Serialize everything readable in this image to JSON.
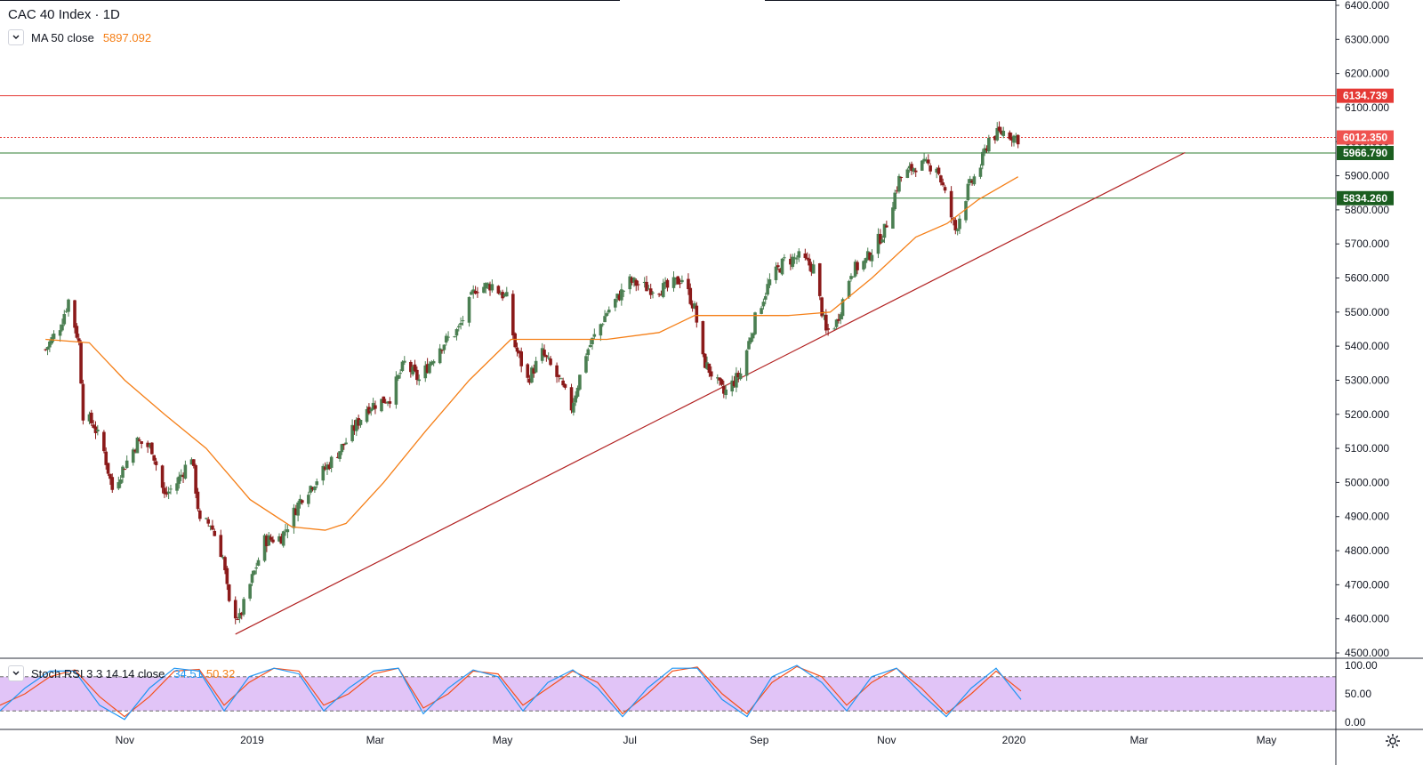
{
  "title": "CAC 40 Index · 1D",
  "ma_legend": {
    "label": "MA 50 close",
    "value": "5897.092"
  },
  "stoch_legend": {
    "label": "Stoch RSI 3 3 14 14 close",
    "k": "34.51",
    "d": "50.32"
  },
  "colors": {
    "up": "#4b7f52",
    "down": "#8b1a1a",
    "ma": "#f57f17",
    "trend": "#b22222",
    "resistance": "#e53935",
    "support": "#2e7d32",
    "stoch_k": "#2196f3",
    "stoch_d": "#f4511e",
    "stoch_band": "#e1c4f7"
  },
  "chart_data": {
    "type": "candlestick",
    "y_ticks": [
      "6400.000",
      "6300.000",
      "6200.000",
      "6100.000",
      "6000.000",
      "5900.000",
      "5800.000",
      "5700.000",
      "5600.000",
      "5500.000",
      "5400.000",
      "5300.000",
      "5200.000",
      "5100.000",
      "5000.000",
      "4900.000",
      "4800.000",
      "4700.000",
      "4600.000",
      "4500.000"
    ],
    "x_ticks": [
      "Nov",
      "2019",
      "Mar",
      "May",
      "Jul",
      "Sep",
      "Nov",
      "2020",
      "Mar",
      "May"
    ],
    "close_path": [
      [
        "2018-09-24",
        5390
      ],
      [
        "2018-10-01",
        5460
      ],
      [
        "2018-10-05",
        5535
      ],
      [
        "2018-10-10",
        5410
      ],
      [
        "2018-10-12",
        5200
      ],
      [
        "2018-10-17",
        5170
      ],
      [
        "2018-10-22",
        5090
      ],
      [
        "2018-10-26",
        4980
      ],
      [
        "2018-10-31",
        5040
      ],
      [
        "2018-11-07",
        5120
      ],
      [
        "2018-11-14",
        5100
      ],
      [
        "2018-11-20",
        4960
      ],
      [
        "2018-11-26",
        5000
      ],
      [
        "2018-12-03",
        5080
      ],
      [
        "2018-12-07",
        4880
      ],
      [
        "2018-12-12",
        4880
      ],
      [
        "2018-12-18",
        4780
      ],
      [
        "2018-12-21",
        4640
      ],
      [
        "2018-12-26",
        4600
      ],
      [
        "2018-12-31",
        4700
      ],
      [
        "2019-01-07",
        4830
      ],
      [
        "2019-01-15",
        4840
      ],
      [
        "2019-01-25",
        4960
      ],
      [
        "2019-02-05",
        5040
      ],
      [
        "2019-02-15",
        5120
      ],
      [
        "2019-02-25",
        5220
      ],
      [
        "2019-03-08",
        5250
      ],
      [
        "2019-03-15",
        5350
      ],
      [
        "2019-03-22",
        5300
      ],
      [
        "2019-04-01",
        5400
      ],
      [
        "2019-04-10",
        5450
      ],
      [
        "2019-04-18",
        5570
      ],
      [
        "2019-04-26",
        5580
      ],
      [
        "2019-05-03",
        5540
      ],
      [
        "2019-05-07",
        5400
      ],
      [
        "2019-05-13",
        5300
      ],
      [
        "2019-05-20",
        5380
      ],
      [
        "2019-05-28",
        5300
      ],
      [
        "2019-06-03",
        5220
      ],
      [
        "2019-06-10",
        5380
      ],
      [
        "2019-06-20",
        5500
      ],
      [
        "2019-07-01",
        5590
      ],
      [
        "2019-07-10",
        5570
      ],
      [
        "2019-07-19",
        5570
      ],
      [
        "2019-07-26",
        5600
      ],
      [
        "2019-08-01",
        5510
      ],
      [
        "2019-08-05",
        5360
      ],
      [
        "2019-08-09",
        5320
      ],
      [
        "2019-08-15",
        5260
      ],
      [
        "2019-08-23",
        5320
      ],
      [
        "2019-08-30",
        5480
      ],
      [
        "2019-09-06",
        5590
      ],
      [
        "2019-09-13",
        5650
      ],
      [
        "2019-09-20",
        5660
      ],
      [
        "2019-09-27",
        5630
      ],
      [
        "2019-10-03",
        5440
      ],
      [
        "2019-10-08",
        5470
      ],
      [
        "2019-10-15",
        5620
      ],
      [
        "2019-10-22",
        5650
      ],
      [
        "2019-10-31",
        5740
      ],
      [
        "2019-11-07",
        5890
      ],
      [
        "2019-11-15",
        5930
      ],
      [
        "2019-11-25",
        5930
      ],
      [
        "2019-12-02",
        5780
      ],
      [
        "2019-12-04",
        5740
      ],
      [
        "2019-12-10",
        5860
      ],
      [
        "2019-12-16",
        5930
      ],
      [
        "2019-12-20",
        6010
      ],
      [
        "2019-12-27",
        6030
      ],
      [
        "2020-01-03",
        6010
      ]
    ],
    "ma50_path": [
      [
        "2018-09-24",
        5420
      ],
      [
        "2018-10-15",
        5410
      ],
      [
        "2018-11-01",
        5300
      ],
      [
        "2018-11-20",
        5200
      ],
      [
        "2018-12-10",
        5100
      ],
      [
        "2018-12-31",
        4950
      ],
      [
        "2019-01-20",
        4870
      ],
      [
        "2019-02-05",
        4860
      ],
      [
        "2019-02-15",
        4880
      ],
      [
        "2019-03-05",
        5000
      ],
      [
        "2019-03-25",
        5150
      ],
      [
        "2019-04-15",
        5300
      ],
      [
        "2019-05-05",
        5420
      ],
      [
        "2019-05-25",
        5420
      ],
      [
        "2019-06-20",
        5420
      ],
      [
        "2019-07-15",
        5440
      ],
      [
        "2019-08-01",
        5490
      ],
      [
        "2019-08-25",
        5490
      ],
      [
        "2019-09-15",
        5490
      ],
      [
        "2019-10-05",
        5500
      ],
      [
        "2019-10-25",
        5600
      ],
      [
        "2019-11-15",
        5720
      ],
      [
        "2019-11-30",
        5760
      ],
      [
        "2019-12-15",
        5830
      ],
      [
        "2020-01-03",
        5897
      ]
    ],
    "horizontal_levels": [
      {
        "label": "6134.739",
        "value": 6134.739,
        "style": "resistance"
      },
      {
        "label": "6012.350",
        "value": 6012.35,
        "style": "current"
      },
      {
        "label": "5966.790",
        "value": 5966.79,
        "style": "support"
      },
      {
        "label": "5834.260",
        "value": 5834.26,
        "style": "support"
      }
    ],
    "trendline": {
      "from": [
        "2018-12-24",
        4555
      ],
      "to": [
        "2020-03-23",
        5968
      ]
    },
    "stoch_rsi": {
      "y_ticks": [
        "100.00",
        "50.00",
        "0.00"
      ],
      "bands": [
        80,
        20
      ],
      "k": [
        20,
        60,
        90,
        90,
        30,
        5,
        60,
        95,
        90,
        20,
        80,
        95,
        85,
        20,
        60,
        90,
        95,
        15,
        60,
        92,
        80,
        20,
        70,
        92,
        60,
        10,
        60,
        95,
        95,
        40,
        10,
        80,
        100,
        70,
        20,
        80,
        95,
        50,
        10,
        60,
        95,
        40
      ],
      "d": [
        30,
        50,
        80,
        92,
        45,
        10,
        45,
        90,
        93,
        30,
        70,
        95,
        90,
        30,
        50,
        85,
        95,
        25,
        50,
        90,
        85,
        30,
        60,
        90,
        70,
        15,
        50,
        90,
        97,
        50,
        15,
        70,
        98,
        80,
        30,
        70,
        95,
        60,
        15,
        50,
        90,
        55
      ]
    }
  }
}
